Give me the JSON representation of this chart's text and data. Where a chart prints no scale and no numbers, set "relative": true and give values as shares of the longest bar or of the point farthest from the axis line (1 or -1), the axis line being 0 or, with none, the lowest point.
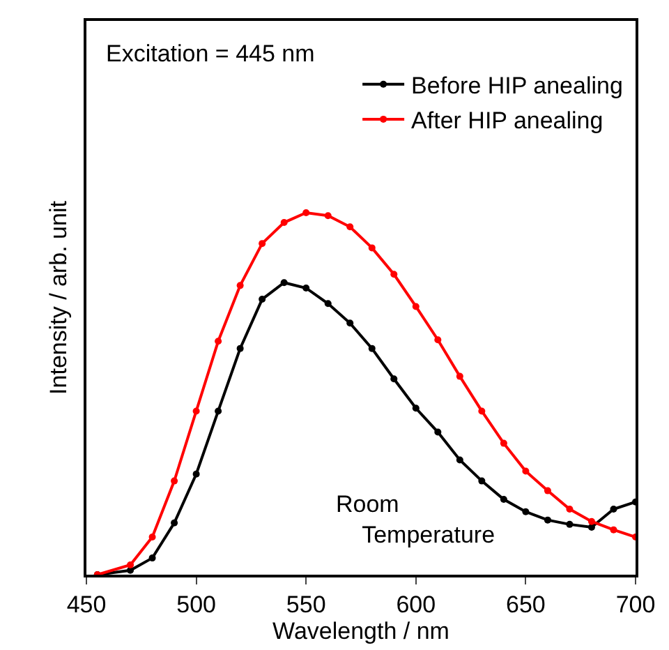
{
  "chart_data": {
    "type": "line",
    "relative": true,
    "xlabel": "Wavelength / nm",
    "ylabel": "Intensity / arb. unit",
    "xlim": [
      450,
      700
    ],
    "xticks": [
      450,
      500,
      550,
      600,
      650,
      700
    ],
    "x": [
      455,
      470,
      480,
      490,
      500,
      510,
      520,
      530,
      540,
      550,
      560,
      570,
      580,
      590,
      600,
      610,
      620,
      630,
      640,
      650,
      660,
      670,
      680,
      690,
      700
    ],
    "series": [
      {
        "name": "Before HIP anealing",
        "color": "#000000",
        "values": [
          0,
          0.012,
          0.046,
          0.143,
          0.278,
          0.452,
          0.625,
          0.761,
          0.807,
          0.792,
          0.749,
          0.695,
          0.625,
          0.541,
          0.46,
          0.394,
          0.317,
          0.259,
          0.208,
          0.174,
          0.151,
          0.139,
          0.131,
          0.181,
          0.201
        ]
      },
      {
        "name": "After HIP anealing",
        "color": "#ff0000",
        "values": [
          0,
          0.027,
          0.104,
          0.259,
          0.452,
          0.645,
          0.799,
          0.915,
          0.973,
          1,
          0.992,
          0.961,
          0.903,
          0.83,
          0.741,
          0.649,
          0.548,
          0.452,
          0.363,
          0.286,
          0.232,
          0.181,
          0.147,
          0.124,
          0.104
        ]
      }
    ],
    "marker": "circle",
    "legend": "top right",
    "grid": false,
    "annotations": [
      "Excitation = 445 nm",
      "Room Temperature"
    ]
  }
}
